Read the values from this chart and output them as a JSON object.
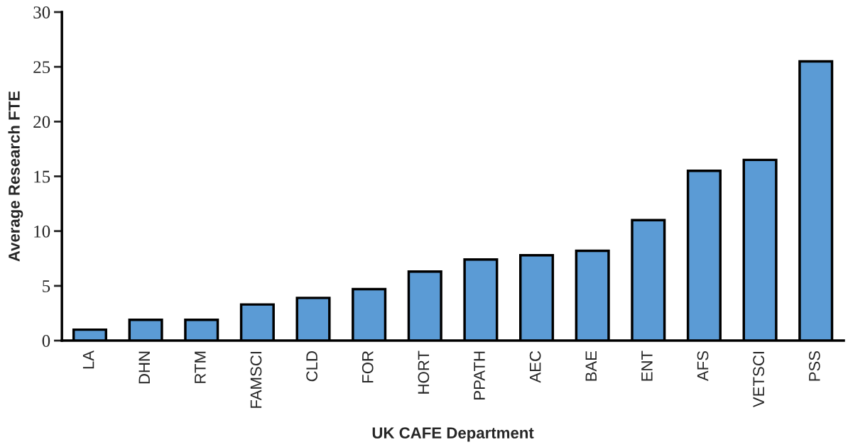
{
  "chart_data": {
    "type": "bar",
    "xlabel": "UK CAFE Department",
    "ylabel": "Average Research FTE",
    "categories": [
      "LA",
      "DHN",
      "RTM",
      "FAMSCI",
      "CLD",
      "FOR",
      "HORT",
      "PPATH",
      "AEC",
      "BAE",
      "ENT",
      "AFS",
      "VETSCI",
      "PSS"
    ],
    "values": [
      1.0,
      1.9,
      1.9,
      3.3,
      3.9,
      4.7,
      6.3,
      7.4,
      7.8,
      8.2,
      11.0,
      15.5,
      16.5,
      25.5
    ],
    "color": "#5b9bd5",
    "ylim": [
      0,
      30
    ],
    "yticks": [
      0,
      5,
      10,
      15,
      20,
      25,
      30
    ],
    "grid": false
  }
}
